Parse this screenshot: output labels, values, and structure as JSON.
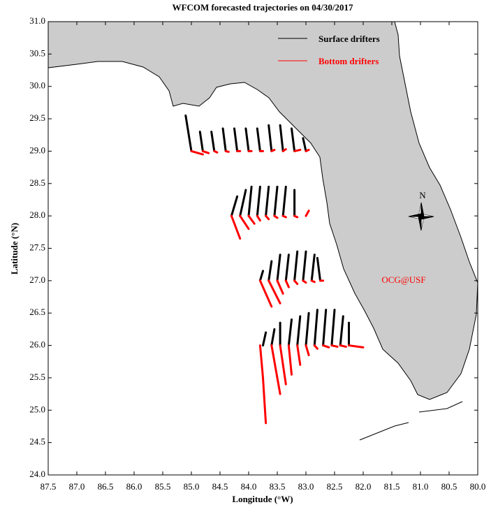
{
  "chart_data": {
    "type": "trajectory",
    "title": "WFCOM forecasted trajectories on 04/30/2017",
    "x_label": "Longitude (°W)",
    "y_label": "Latitude (°N)",
    "xlim": [
      87.5,
      80.0
    ],
    "ylim": [
      24.0,
      31.0
    ],
    "xticks": [
      87.5,
      {
        "value": 87.0,
        "label": "87.0"
      },
      86.5,
      {
        "value": 86.0,
        "label": "86.0"
      },
      85.5,
      {
        "value": 85.0,
        "label": "85.0"
      },
      84.5,
      {
        "value": 84.0,
        "label": "84.0"
      },
      83.5,
      {
        "value": 83.0,
        "label": "83.0"
      },
      82.5,
      {
        "value": 82.0,
        "label": "82.0"
      },
      81.5,
      {
        "value": 81.0,
        "label": "81.0"
      },
      80.5,
      {
        "value": 80.0,
        "label": "80.0"
      }
    ],
    "yticks": [
      {
        "value": 24.0,
        "label": "24.0"
      },
      24.5,
      {
        "value": 25.0,
        "label": "25.0"
      },
      25.5,
      {
        "value": 26.0,
        "label": "26.0"
      },
      26.5,
      {
        "value": 27.0,
        "label": "27.0"
      },
      27.5,
      {
        "value": 28.0,
        "label": "28.0"
      },
      28.5,
      {
        "value": 29.0,
        "label": "29.0"
      },
      29.5,
      {
        "value": 30.0,
        "label": "30.0"
      },
      30.5,
      {
        "value": 31.0,
        "label": "31.0"
      }
    ],
    "annotations": [
      "OCG@USF",
      "N"
    ],
    "series": [
      {
        "name": "Surface drifters",
        "color": "#000000",
        "tracks": [
          {
            "lon": [
              85.0,
              85.1
            ],
            "lat": [
              29.0,
              29.55
            ]
          },
          {
            "lon": [
              84.8,
              84.85
            ],
            "lat": [
              29.0,
              29.3
            ]
          },
          {
            "lon": [
              84.6,
              84.65
            ],
            "lat": [
              29.0,
              29.3
            ]
          },
          {
            "lon": [
              84.4,
              84.45
            ],
            "lat": [
              29.0,
              29.35
            ]
          },
          {
            "lon": [
              84.2,
              84.25
            ],
            "lat": [
              29.0,
              29.35
            ]
          },
          {
            "lon": [
              84.0,
              84.05
            ],
            "lat": [
              29.0,
              29.35
            ]
          },
          {
            "lon": [
              83.8,
              83.85
            ],
            "lat": [
              29.0,
              29.35
            ]
          },
          {
            "lon": [
              83.6,
              83.65
            ],
            "lat": [
              29.0,
              29.4
            ]
          },
          {
            "lon": [
              83.4,
              83.45
            ],
            "lat": [
              29.0,
              29.4
            ]
          },
          {
            "lon": [
              83.2,
              83.25
            ],
            "lat": [
              29.0,
              29.35
            ]
          },
          {
            "lon": [
              83.0,
              83.05
            ],
            "lat": [
              29.0,
              29.2
            ]
          },
          {
            "lon": [
              84.3,
              84.2
            ],
            "lat": [
              28.0,
              28.3
            ]
          },
          {
            "lon": [
              84.15,
              84.05
            ],
            "lat": [
              28.0,
              28.4
            ]
          },
          {
            "lon": [
              84.0,
              83.95
            ],
            "lat": [
              28.0,
              28.45
            ]
          },
          {
            "lon": [
              83.85,
              83.8
            ],
            "lat": [
              28.0,
              28.45
            ]
          },
          {
            "lon": [
              83.7,
              83.65
            ],
            "lat": [
              28.0,
              28.45
            ]
          },
          {
            "lon": [
              83.55,
              83.5
            ],
            "lat": [
              28.0,
              28.45
            ]
          },
          {
            "lon": [
              83.4,
              83.35
            ],
            "lat": [
              28.0,
              28.45
            ]
          },
          {
            "lon": [
              83.2,
              83.2
            ],
            "lat": [
              28.0,
              28.4
            ]
          },
          {
            "lon": [
              83.8,
              83.75
            ],
            "lat": [
              27.0,
              27.15
            ]
          },
          {
            "lon": [
              83.65,
              83.6
            ],
            "lat": [
              27.0,
              27.3
            ]
          },
          {
            "lon": [
              83.5,
              83.45
            ],
            "lat": [
              27.0,
              27.4
            ]
          },
          {
            "lon": [
              83.35,
              83.3
            ],
            "lat": [
              27.0,
              27.4
            ]
          },
          {
            "lon": [
              83.2,
              83.15
            ],
            "lat": [
              27.0,
              27.45
            ]
          },
          {
            "lon": [
              83.05,
              83.0
            ],
            "lat": [
              27.0,
              27.45
            ]
          },
          {
            "lon": [
              82.9,
              82.85
            ],
            "lat": [
              27.0,
              27.4
            ]
          },
          {
            "lon": [
              82.75,
              82.8
            ],
            "lat": [
              27.0,
              27.35
            ]
          },
          {
            "lon": [
              83.75,
              83.7
            ],
            "lat": [
              26.0,
              26.2
            ]
          },
          {
            "lon": [
              83.6,
              83.55
            ],
            "lat": [
              26.0,
              26.25
            ]
          },
          {
            "lon": [
              83.45,
              83.45
            ],
            "lat": [
              26.0,
              26.35
            ]
          },
          {
            "lon": [
              83.3,
              83.25
            ],
            "lat": [
              26.0,
              26.4
            ]
          },
          {
            "lon": [
              83.15,
              83.1
            ],
            "lat": [
              26.0,
              26.45
            ]
          },
          {
            "lon": [
              83.0,
              82.95
            ],
            "lat": [
              26.0,
              26.5
            ]
          },
          {
            "lon": [
              82.85,
              82.8
            ],
            "lat": [
              26.0,
              26.55
            ]
          },
          {
            "lon": [
              82.7,
              82.65
            ],
            "lat": [
              26.0,
              26.55
            ]
          },
          {
            "lon": [
              82.55,
              82.5
            ],
            "lat": [
              26.0,
              26.55
            ]
          },
          {
            "lon": [
              82.4,
              82.35
            ],
            "lat": [
              26.0,
              26.45
            ]
          },
          {
            "lon": [
              82.25,
              82.25
            ],
            "lat": [
              26.0,
              26.35
            ]
          }
        ]
      },
      {
        "name": "Bottom drifters",
        "color": "#ff0000",
        "tracks": [
          {
            "lon": [
              85.0,
              84.8
            ],
            "lat": [
              29.0,
              28.95
            ]
          },
          {
            "lon": [
              84.8,
              84.7
            ],
            "lat": [
              29.0,
              28.97
            ]
          },
          {
            "lon": [
              84.6,
              84.55
            ],
            "lat": [
              29.0,
              28.98
            ]
          },
          {
            "lon": [
              84.4,
              84.35
            ],
            "lat": [
              29.0,
              28.99
            ]
          },
          {
            "lon": [
              84.2,
              84.15
            ],
            "lat": [
              29.0,
              29.0
            ]
          },
          {
            "lon": [
              84.0,
              83.95
            ],
            "lat": [
              29.0,
              29.0
            ]
          },
          {
            "lon": [
              83.8,
              83.75
            ],
            "lat": [
              29.0,
              29.0
            ]
          },
          {
            "lon": [
              83.6,
              83.55
            ],
            "lat": [
              29.0,
              29.02
            ]
          },
          {
            "lon": [
              83.4,
              83.35
            ],
            "lat": [
              29.0,
              29.03
            ]
          },
          {
            "lon": [
              83.2,
              83.1
            ],
            "lat": [
              29.0,
              29.02
            ]
          },
          {
            "lon": [
              83.0,
              82.95
            ],
            "lat": [
              29.0,
              29.02
            ]
          },
          {
            "lon": [
              84.3,
              84.15
            ],
            "lat": [
              28.0,
              27.65
            ]
          },
          {
            "lon": [
              84.15,
              84.0
            ],
            "lat": [
              28.0,
              27.8
            ]
          },
          {
            "lon": [
              84.0,
              83.9
            ],
            "lat": [
              28.0,
              27.88
            ]
          },
          {
            "lon": [
              83.85,
              83.8
            ],
            "lat": [
              28.0,
              27.93
            ]
          },
          {
            "lon": [
              83.7,
              83.65
            ],
            "lat": [
              28.0,
              27.95
            ]
          },
          {
            "lon": [
              83.55,
              83.5
            ],
            "lat": [
              28.0,
              27.97
            ]
          },
          {
            "lon": [
              83.4,
              83.35
            ],
            "lat": [
              28.0,
              27.98
            ]
          },
          {
            "lon": [
              83.2,
              83.15
            ],
            "lat": [
              28.0,
              27.98
            ]
          },
          {
            "lon": [
              83.0,
              82.95
            ],
            "lat": [
              28.0,
              28.08
            ]
          },
          {
            "lon": [
              83.8,
              83.6
            ],
            "lat": [
              27.0,
              26.6
            ]
          },
          {
            "lon": [
              83.65,
              83.45
            ],
            "lat": [
              27.0,
              26.65
            ]
          },
          {
            "lon": [
              83.5,
              83.4
            ],
            "lat": [
              27.0,
              26.8
            ]
          },
          {
            "lon": [
              83.35,
              83.3
            ],
            "lat": [
              27.0,
              26.9
            ]
          },
          {
            "lon": [
              83.2,
              83.15
            ],
            "lat": [
              27.0,
              26.95
            ]
          },
          {
            "lon": [
              83.05,
              83.0
            ],
            "lat": [
              27.0,
              26.97
            ]
          },
          {
            "lon": [
              82.9,
              82.85
            ],
            "lat": [
              27.0,
              26.98
            ]
          },
          {
            "lon": [
              82.75,
              82.7
            ],
            "lat": [
              27.0,
              27.0
            ]
          },
          {
            "lon": [
              83.8,
              83.75
            ],
            "lat": [
              26.0,
              25.5
            ]
          },
          {
            "lon": [
              83.75,
              83.7
            ],
            "lat": [
              25.5,
              24.8
            ]
          },
          {
            "lon": [
              83.6,
              83.45
            ],
            "lat": [
              26.0,
              25.25
            ]
          },
          {
            "lon": [
              83.45,
              83.35
            ],
            "lat": [
              26.0,
              25.4
            ]
          },
          {
            "lon": [
              83.3,
              83.25
            ],
            "lat": [
              26.0,
              25.55
            ]
          },
          {
            "lon": [
              83.15,
              83.1
            ],
            "lat": [
              26.0,
              25.7
            ]
          },
          {
            "lon": [
              83.0,
              82.95
            ],
            "lat": [
              26.0,
              25.85
            ]
          },
          {
            "lon": [
              82.85,
              82.8
            ],
            "lat": [
              26.0,
              25.95
            ]
          },
          {
            "lon": [
              82.7,
              82.6
            ],
            "lat": [
              26.0,
              25.97
            ]
          },
          {
            "lon": [
              82.55,
              82.45
            ],
            "lat": [
              26.0,
              25.98
            ]
          },
          {
            "lon": [
              82.4,
              82.3
            ],
            "lat": [
              26.0,
              25.98
            ]
          },
          {
            "lon": [
              82.25,
              82.0
            ],
            "lat": [
              26.0,
              25.97
            ]
          }
        ]
      }
    ]
  }
}
